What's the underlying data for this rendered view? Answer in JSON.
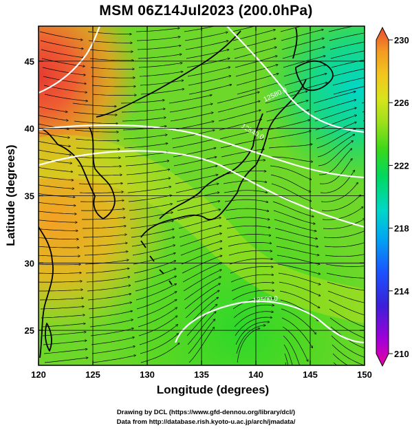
{
  "figure": {
    "title": "MSM 06Z14Jul2023 (200.0hPa)",
    "xlabel": "Longitude (degrees)",
    "ylabel": "Latitude  (degrees)",
    "credit_line1": "Drawing by DCL (https://www.gfd-dennou.org/library/dcl/)",
    "credit_line2": "Data from http://database.rish.kyoto-u.ac.jp/arch/jmadata/"
  },
  "chart_data": {
    "type": "heatmap",
    "title": "MSM 06Z14Jul2023 (200.0hPa)",
    "xlabel": "Longitude (degrees)",
    "ylabel": "Latitude  (degrees)",
    "xlim": [
      120,
      150
    ],
    "ylim": [
      22.4,
      47.6
    ],
    "xticks": [
      120,
      125,
      130,
      135,
      140,
      145,
      150
    ],
    "yticks": [
      25,
      30,
      35,
      40,
      45
    ],
    "grid": true,
    "colorbar": {
      "range": [
        210,
        230
      ],
      "tick_labels": [
        "230",
        "226",
        "222",
        "218",
        "214",
        "210"
      ],
      "tick_values": [
        230,
        226,
        222,
        218,
        214,
        210
      ],
      "colors": [
        "#e8007c",
        "#b000d0",
        "#3a1fcf",
        "#1a55ff",
        "#00a8f0",
        "#00d7c8",
        "#00d860",
        "#3ad81a",
        "#8ee01c",
        "#d4e41c",
        "#f2c61e",
        "#f39a22",
        "#ef5f32",
        "#e63b32"
      ],
      "placement": "right"
    },
    "contour_labels": [
      "12580.0",
      "12540.0",
      "12500.0"
    ],
    "field_samples": [
      {
        "lon": 122,
        "lat": 44,
        "value": 229
      },
      {
        "lon": 124,
        "lat": 34,
        "value": 227
      },
      {
        "lon": 130,
        "lat": 38,
        "value": 225
      },
      {
        "lon": 137,
        "lat": 36,
        "value": 223
      },
      {
        "lon": 147,
        "lat": 43,
        "value": 219
      },
      {
        "lon": 145,
        "lat": 30,
        "value": 222
      },
      {
        "lon": 137,
        "lat": 26,
        "value": 221
      }
    ]
  }
}
